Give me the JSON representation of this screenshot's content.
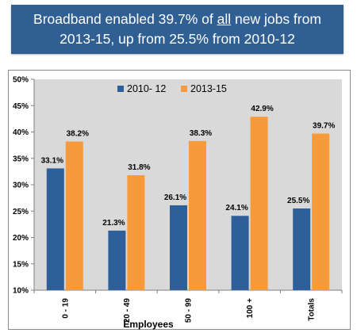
{
  "title": {
    "line1_a": "Broadband enabled 39.7% of ",
    "line1_b": "all",
    "line1_c": " new jobs from",
    "line2": "2013-15,  up from 25.5% from 2010-12"
  },
  "colors": {
    "title_bg": "#2f5f93",
    "plot_bg": "#d9d9d9",
    "series_2010": "#2e5f98",
    "series_2013": "#f79a3c"
  },
  "chart_data": {
    "type": "bar",
    "categories": [
      "0 - 19",
      "20 - 49",
      "50 - 99",
      "100 +",
      "Totals"
    ],
    "series": [
      {
        "name": "2010- 12",
        "values": [
          33.1,
          21.3,
          26.1,
          24.1,
          25.5
        ],
        "labels": [
          "33.1%",
          "21.3%",
          "26.1%",
          "24.1%",
          "25.5%"
        ]
      },
      {
        "name": "2013-15",
        "values": [
          38.2,
          31.8,
          38.3,
          42.9,
          39.7
        ],
        "labels": [
          "38.2%",
          "31.8%",
          "38.3%",
          "42.9%",
          "39.7%"
        ]
      }
    ],
    "ylim": [
      10,
      50
    ],
    "yticks": [
      "10%",
      "15%",
      "20%",
      "25%",
      "30%",
      "35%",
      "40%",
      "45%",
      "50%"
    ],
    "xlabel": "Employees",
    "ylabel": "",
    "legend_position": "top-left",
    "grid": false
  }
}
